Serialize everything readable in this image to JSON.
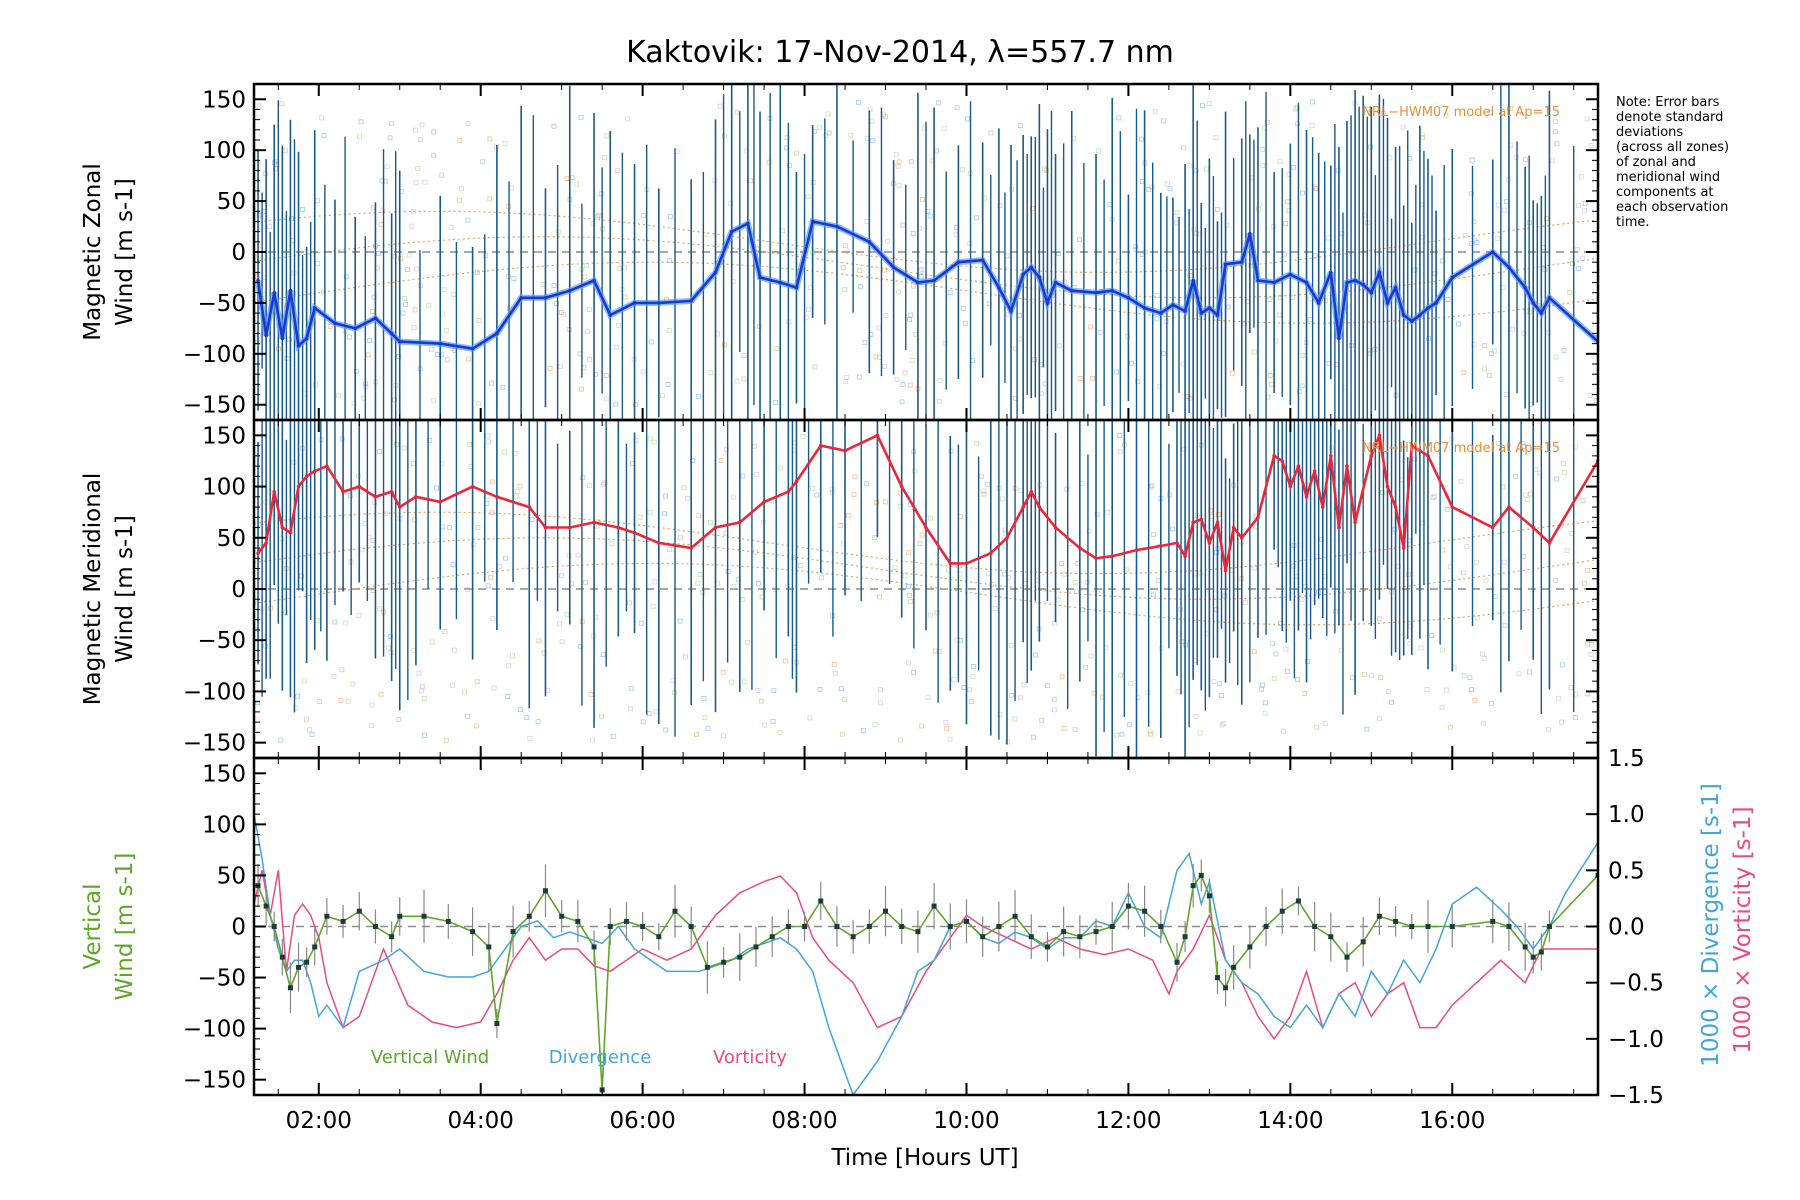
{
  "chart_data": {
    "type": "line",
    "title": "Kaktovik: 17-Nov-2014, λ=557.7 nm",
    "xlabel": "Time [Hours UT]",
    "xlim": [
      1.2,
      17.8
    ],
    "x_ticks": [
      "02:00",
      "04:00",
      "06:00",
      "08:00",
      "10:00",
      "12:00",
      "14:00",
      "16:00"
    ],
    "x_tick_values": [
      2,
      4,
      6,
      8,
      10,
      12,
      14,
      16
    ],
    "note": [
      "Note: Error bars",
      "denote standard",
      "deviations",
      "(across all zones)",
      "of zonal and",
      "meridional wind",
      "components at",
      "each observation",
      "time."
    ],
    "colors": {
      "zonal": "#1f35d6",
      "zonal_light": "#4fa3e8",
      "meridional": "#e8283a",
      "errorbar": "#1a5a8a",
      "model": "#e6923a",
      "vertical": "#5fa62a",
      "divergence": "#43a6d6",
      "vorticity": "#e84a86",
      "zeroline": "#8c8c8c"
    },
    "panels": [
      {
        "name": "zonal",
        "ylabel": [
          "Magnetic Zonal",
          "Wind [m s-1]"
        ],
        "ylim": [
          -165,
          165
        ],
        "y_ticks": [
          "150",
          "100",
          "50",
          "0",
          "−50",
          "−100",
          "−150"
        ],
        "model_label": "NRL−HWM07 model at Ap=15",
        "series": {
          "name": "Zonal wind",
          "x": [
            1.25,
            1.35,
            1.45,
            1.55,
            1.65,
            1.75,
            1.85,
            1.95,
            2.2,
            2.45,
            2.7,
            2.9,
            3.0,
            3.5,
            3.9,
            4.2,
            4.5,
            4.8,
            5.1,
            5.4,
            5.6,
            5.9,
            6.2,
            6.6,
            6.9,
            7.1,
            7.3,
            7.45,
            7.7,
            7.9,
            8.1,
            8.4,
            8.8,
            9.1,
            9.4,
            9.6,
            9.9,
            10.2,
            10.4,
            10.55,
            10.7,
            10.8,
            10.9,
            11.0,
            11.1,
            11.3,
            11.6,
            11.8,
            12.0,
            12.2,
            12.4,
            12.55,
            12.7,
            12.8,
            12.9,
            13.0,
            13.1,
            13.2,
            13.4,
            13.5,
            13.6,
            13.8,
            14.0,
            14.2,
            14.35,
            14.5,
            14.6,
            14.7,
            14.8,
            14.9,
            15.0,
            15.1,
            15.2,
            15.3,
            15.4,
            15.5,
            15.6,
            15.7,
            15.8,
            16.0,
            16.5,
            16.7,
            16.9,
            17.0,
            17.1,
            17.2,
            17.8
          ],
          "y": [
            -28,
            -82,
            -40,
            -85,
            -38,
            -92,
            -85,
            -55,
            -70,
            -75,
            -65,
            -80,
            -88,
            -90,
            -95,
            -80,
            -45,
            -45,
            -38,
            -28,
            -62,
            -50,
            -50,
            -48,
            -20,
            20,
            28,
            -25,
            -30,
            -35,
            30,
            25,
            10,
            -15,
            -30,
            -28,
            -10,
            -8,
            -35,
            -58,
            -22,
            -15,
            -25,
            -50,
            -30,
            -38,
            -40,
            -38,
            -45,
            -55,
            -60,
            -52,
            -58,
            -28,
            -60,
            -55,
            -62,
            -12,
            -10,
            18,
            -28,
            -30,
            -22,
            -30,
            -50,
            -20,
            -85,
            -30,
            -28,
            -32,
            -40,
            -20,
            -50,
            -35,
            -62,
            -68,
            -62,
            -55,
            -50,
            -25,
            0,
            -15,
            -35,
            -50,
            -60,
            -45,
            -88
          ]
        }
      },
      {
        "name": "meridional",
        "ylabel": [
          "Magnetic Meridional",
          "Wind [m s-1]"
        ],
        "ylim": [
          -165,
          165
        ],
        "y_ticks": [
          "150",
          "100",
          "50",
          "0",
          "−50",
          "−100",
          "−150"
        ],
        "model_label": "NRL−HWM07 model at Ap=15",
        "series": {
          "name": "Meridional wind",
          "x": [
            1.25,
            1.35,
            1.45,
            1.55,
            1.65,
            1.75,
            1.85,
            1.95,
            2.1,
            2.3,
            2.5,
            2.7,
            2.9,
            3.0,
            3.2,
            3.5,
            3.9,
            4.2,
            4.6,
            4.8,
            5.1,
            5.4,
            5.7,
            5.9,
            6.2,
            6.6,
            6.9,
            7.2,
            7.5,
            7.8,
            7.9,
            8.2,
            8.5,
            8.9,
            9.2,
            9.5,
            9.8,
            10.0,
            10.3,
            10.5,
            10.7,
            10.8,
            10.9,
            11.1,
            11.4,
            11.6,
            11.8,
            12.1,
            12.4,
            12.6,
            12.7,
            12.8,
            12.9,
            13.0,
            13.1,
            13.2,
            13.3,
            13.4,
            13.6,
            13.8,
            13.9,
            14.0,
            14.1,
            14.2,
            14.3,
            14.4,
            14.5,
            14.6,
            14.7,
            14.8,
            15.0,
            15.1,
            15.2,
            15.3,
            15.4,
            15.5,
            15.6,
            15.7,
            16.0,
            16.5,
            16.7,
            17.0,
            17.2,
            17.8
          ],
          "y": [
            35,
            45,
            95,
            60,
            55,
            100,
            110,
            115,
            120,
            95,
            100,
            90,
            95,
            80,
            90,
            85,
            100,
            90,
            80,
            60,
            60,
            65,
            60,
            55,
            45,
            40,
            60,
            65,
            85,
            95,
            105,
            140,
            135,
            150,
            100,
            60,
            25,
            25,
            35,
            50,
            80,
            95,
            80,
            60,
            40,
            30,
            32,
            38,
            42,
            45,
            32,
            65,
            68,
            45,
            65,
            18,
            60,
            50,
            70,
            130,
            125,
            100,
            120,
            90,
            115,
            80,
            130,
            60,
            120,
            65,
            130,
            150,
            100,
            80,
            40,
            140,
            135,
            130,
            80,
            60,
            80,
            60,
            45,
            125
          ]
        }
      },
      {
        "name": "vertical",
        "ylabel": [
          "Vertical",
          "Wind [m s-1]"
        ],
        "ylim": [
          -165,
          165
        ],
        "y_ticks": [
          "150",
          "100",
          "50",
          "0",
          "−50",
          "−100",
          "−150"
        ],
        "y2_ticks": [
          "1.5",
          "1.0",
          "0.5",
          "0.0",
          "−0.5",
          "−1.0",
          "−1.5"
        ],
        "y2_label_divergence": "1000 × Divergence [s-1]",
        "y2_label_vorticity": "1000 × Vorticity [s-1]",
        "legend": [
          "Vertical Wind",
          "Divergence",
          "Vorticity"
        ],
        "series": [
          {
            "name": "Vertical Wind",
            "x": [
              1.25,
              1.35,
              1.45,
              1.55,
              1.65,
              1.75,
              1.85,
              1.95,
              2.1,
              2.3,
              2.5,
              2.7,
              2.9,
              3.0,
              3.3,
              3.6,
              3.9,
              4.1,
              4.2,
              4.4,
              4.6,
              4.8,
              5.0,
              5.2,
              5.4,
              5.5,
              5.6,
              5.8,
              6.0,
              6.2,
              6.4,
              6.6,
              6.8,
              7.0,
              7.2,
              7.4,
              7.6,
              7.8,
              8.0,
              8.2,
              8.4,
              8.6,
              8.8,
              9.0,
              9.2,
              9.4,
              9.6,
              9.8,
              10.0,
              10.2,
              10.4,
              10.6,
              10.8,
              11.0,
              11.2,
              11.4,
              11.6,
              11.8,
              12.0,
              12.2,
              12.4,
              12.6,
              12.7,
              12.8,
              12.9,
              13.0,
              13.1,
              13.2,
              13.3,
              13.5,
              13.7,
              13.9,
              14.1,
              14.3,
              14.5,
              14.7,
              14.9,
              15.1,
              15.3,
              15.5,
              15.7,
              16.0,
              16.5,
              16.7,
              16.9,
              17.0,
              17.1,
              17.2,
              17.8
            ],
            "y": [
              40,
              20,
              0,
              -30,
              -60,
              -40,
              -35,
              -20,
              10,
              5,
              15,
              0,
              -10,
              10,
              10,
              5,
              -5,
              -20,
              -95,
              -5,
              10,
              35,
              10,
              5,
              -20,
              -160,
              0,
              5,
              0,
              -10,
              15,
              0,
              -40,
              -35,
              -30,
              -20,
              -10,
              0,
              0,
              25,
              0,
              -10,
              0,
              15,
              0,
              -5,
              20,
              0,
              5,
              -10,
              0,
              10,
              -10,
              -20,
              -5,
              -10,
              -5,
              0,
              20,
              15,
              0,
              -35,
              -10,
              40,
              50,
              30,
              -50,
              -60,
              -40,
              -20,
              0,
              15,
              25,
              0,
              -10,
              -30,
              -15,
              10,
              5,
              0,
              0,
              0,
              5,
              0,
              -20,
              -30,
              -25,
              0,
              50
            ]
          },
          {
            "name": "Divergence",
            "x": [
              1.2,
              1.3,
              1.4,
              1.5,
              1.6,
              1.7,
              1.8,
              1.9,
              2.0,
              2.1,
              2.3,
              2.5,
              2.8,
              3.0,
              3.3,
              3.6,
              3.9,
              4.1,
              4.3,
              4.5,
              4.7,
              4.9,
              5.1,
              5.3,
              5.5,
              5.7,
              5.9,
              6.1,
              6.3,
              6.5,
              6.7,
              6.9,
              7.1,
              7.3,
              7.5,
              7.7,
              7.9,
              8.1,
              8.3,
              8.6,
              8.9,
              9.2,
              9.4,
              9.6,
              9.8,
              10.0,
              10.2,
              10.4,
              10.6,
              10.8,
              11.0,
              11.2,
              11.4,
              11.6,
              11.8,
              12.0,
              12.2,
              12.4,
              12.6,
              12.75,
              12.9,
              13.0,
              13.2,
              13.4,
              13.6,
              13.8,
              14.0,
              14.2,
              14.4,
              14.6,
              14.8,
              15.0,
              15.2,
              15.4,
              15.6,
              15.8,
              16.0,
              16.3,
              16.6,
              16.8,
              17.0,
              17.2,
              17.4,
              17.8
            ],
            "y": [
              1.0,
              0.6,
              0.1,
              -0.2,
              -0.4,
              -0.3,
              -0.3,
              -0.5,
              -0.8,
              -0.7,
              -0.9,
              -0.4,
              -0.3,
              -0.2,
              -0.4,
              -0.45,
              -0.45,
              -0.4,
              -0.2,
              0.0,
              0.05,
              -0.1,
              -0.05,
              -0.1,
              -0.15,
              0.0,
              -0.2,
              -0.3,
              -0.4,
              -0.4,
              -0.4,
              -0.35,
              -0.3,
              -0.2,
              -0.15,
              -0.1,
              -0.2,
              -0.4,
              -0.9,
              -1.5,
              -1.2,
              -0.8,
              -0.4,
              -0.3,
              0.0,
              0.05,
              -0.1,
              -0.15,
              -0.05,
              -0.1,
              -0.2,
              -0.1,
              -0.1,
              0.05,
              0.0,
              0.3,
              0.0,
              -0.1,
              0.5,
              0.65,
              0.2,
              0.4,
              -0.3,
              -0.5,
              -0.6,
              -0.8,
              -0.9,
              -0.7,
              -0.9,
              -0.6,
              -0.8,
              -0.4,
              -0.6,
              -0.3,
              -0.5,
              -0.2,
              0.2,
              0.35,
              0.15,
              0.0,
              -0.2,
              0.0,
              0.3,
              0.75
            ]
          },
          {
            "name": "Vorticity",
            "x": [
              1.2,
              1.3,
              1.4,
              1.5,
              1.6,
              1.7,
              1.8,
              1.9,
              2.0,
              2.1,
              2.3,
              2.5,
              2.8,
              3.1,
              3.4,
              3.7,
              4.0,
              4.2,
              4.4,
              4.6,
              4.8,
              5.0,
              5.2,
              5.4,
              5.6,
              5.8,
              6.0,
              6.3,
              6.6,
              6.9,
              7.2,
              7.5,
              7.7,
              7.9,
              8.1,
              8.3,
              8.6,
              8.9,
              9.2,
              9.5,
              9.8,
              10.0,
              10.2,
              10.5,
              10.8,
              11.1,
              11.4,
              11.7,
              12.0,
              12.3,
              12.5,
              12.6,
              12.8,
              13.0,
              13.2,
              13.4,
              13.6,
              13.8,
              14.0,
              14.2,
              14.4,
              14.6,
              14.8,
              15.0,
              15.2,
              15.4,
              15.6,
              15.8,
              16.0,
              16.3,
              16.6,
              16.9,
              17.1,
              17.3,
              17.8
            ],
            "y": [
              0.2,
              0.5,
              0.1,
              0.5,
              -0.4,
              0.1,
              0.2,
              0.1,
              -0.1,
              -0.5,
              -0.9,
              -0.8,
              -0.2,
              -0.7,
              -0.85,
              -0.9,
              -0.85,
              -0.6,
              -0.3,
              -0.1,
              -0.3,
              -0.2,
              -0.2,
              -0.35,
              -0.4,
              -0.3,
              -0.2,
              -0.3,
              -0.2,
              0.1,
              0.3,
              0.4,
              0.45,
              0.3,
              -0.1,
              -0.3,
              -0.5,
              -0.9,
              -0.8,
              -0.4,
              -0.1,
              0.1,
              0.0,
              -0.1,
              -0.2,
              -0.1,
              -0.2,
              -0.25,
              -0.2,
              -0.3,
              -0.6,
              -0.4,
              -0.2,
              0.1,
              -0.3,
              -0.5,
              -0.8,
              -1.0,
              -0.8,
              -0.4,
              -0.9,
              -0.6,
              -0.5,
              -0.8,
              -0.6,
              -0.5,
              -0.9,
              -0.9,
              -0.7,
              -0.5,
              -0.3,
              -0.5,
              -0.2,
              -0.2,
              -0.2
            ]
          }
        ]
      }
    ]
  }
}
